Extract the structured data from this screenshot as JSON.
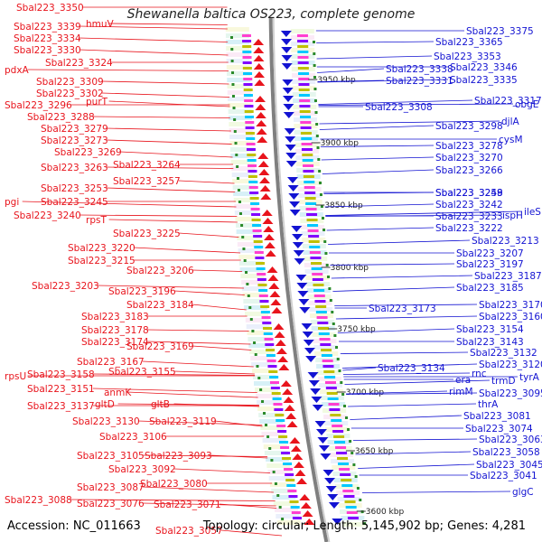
{
  "title": "Shewanella baltica OS223, complete genome",
  "footer": {
    "accession": "Accession: NC_011663",
    "topology": "Topology: circular; Length: 5,145,902 bp; Genes: 4,281"
  },
  "ticks": [
    "3950 kbp",
    "3900 kbp",
    "3850 kbp",
    "3800 kbp",
    "3750 kbp",
    "3700 kbp",
    "3650 kbp",
    "3600 kbp"
  ],
  "left_labels": [
    "Sbal223_3350",
    "hmuV",
    "Sbal223_3339",
    "Sbal223_3334",
    "Sbal223_3330",
    "Sbal223_3324",
    "pdxA",
    "Sbal223_3309",
    "Sbal223_3302",
    "purT",
    "Sbal223_3296",
    "Sbal223_3288",
    "Sbal223_3279",
    "Sbal223_3273",
    "Sbal223_3269",
    "Sbal223_3264",
    "Sbal223_3263",
    "Sbal223_3257",
    "Sbal223_3253",
    "pgi",
    "Sbal223_3245",
    "Sbal223_3240",
    "rpsT",
    "Sbal223_3225",
    "Sbal223_3220",
    "Sbal223_3215",
    "Sbal223_3206",
    "Sbal223_3203",
    "Sbal223_3196",
    "Sbal223_3184",
    "Sbal223_3183",
    "Sbal223_3178",
    "Sbal223_3174",
    "Sbal223_3169",
    "Sbal223_3167",
    "rpsU",
    "Sbal223_3158",
    "Sbal223_3155",
    "Sbal223_3151",
    "anmK",
    "Sbal223_3137",
    "gltD",
    "gltB",
    "Sbal223_3130",
    "Sbal223_3119",
    "Sbal223_3106",
    "Sbal223_3105",
    "Sbal223_3093",
    "Sbal223_3092",
    "Sbal223_3087",
    "Sbal223_3080",
    "Sbal223_3088",
    "Sbal223_3076",
    "Sbal223_3071",
    "Sbal223_3057"
  ],
  "right_labels": [
    "Sbal223_3375",
    "Sbal223_3365",
    "Sbal223_3353",
    "Sbal223_3338",
    "Sbal223_3346",
    "Sbal223_3331",
    "Sbal223_3335",
    "Sbal223_3317",
    "Sbal223_3308",
    "obgE",
    "djlA",
    "Sbal223_3298",
    "cysM",
    "Sbal223_3278",
    "Sbal223_3270",
    "Sbal223_3266",
    "Sbal223_3258",
    "Sbal223_3249",
    "Sbal223_3242",
    "ileS",
    "Sbal223_3233",
    "ispH",
    "Sbal223_3222",
    "Sbal223_3213",
    "Sbal223_3207",
    "Sbal223_3197",
    "Sbal223_3187",
    "Sbal223_3185",
    "Sbal223_3173",
    "Sbal223_3170",
    "Sbal223_3160",
    "Sbal223_3154",
    "Sbal223_3143",
    "Sbal223_3132",
    "Sbal223_3134",
    "Sbal223_3120",
    "era",
    "rnc",
    "rimM",
    "trmD",
    "tyrA",
    "Sbal223_3095",
    "thrA",
    "Sbal223_3081",
    "Sbal223_3074",
    "Sbal223_3063",
    "Sbal223_3058",
    "Sbal223_3045",
    "Sbal223_3041",
    "glgC"
  ],
  "colors": {
    "forward": "#e8141c",
    "reverse": "#1313d2",
    "backbone": "#7f7f7f",
    "tick": "#2a8a2a"
  }
}
